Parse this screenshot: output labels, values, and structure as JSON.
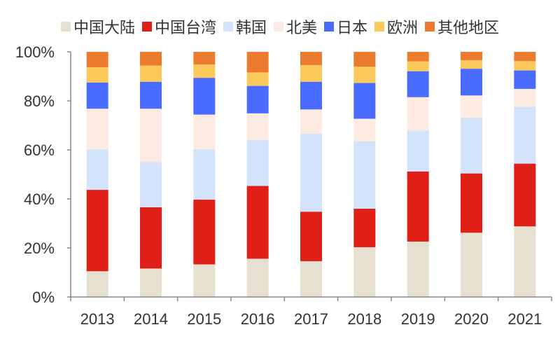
{
  "chart_data": {
    "type": "bar",
    "stacked": true,
    "title": "",
    "xlabel": "",
    "ylabel": "",
    "ylim": [
      0,
      100
    ],
    "yticks": [
      "0%",
      "20%",
      "40%",
      "60%",
      "80%",
      "100%"
    ],
    "legend_position": "top",
    "categories": [
      "2013",
      "2014",
      "2015",
      "2016",
      "2017",
      "2018",
      "2019",
      "2020",
      "2021"
    ],
    "series": [
      {
        "name": "中国大陆",
        "color": "#E6E0D0",
        "values": [
          10.5,
          11.6,
          13.3,
          15.6,
          14.6,
          20.3,
          22.6,
          26.2,
          28.8
        ]
      },
      {
        "name": "中国台湾",
        "color": "#E01F17",
        "values": [
          33.2,
          25.0,
          26.4,
          29.7,
          20.2,
          15.7,
          28.6,
          24.2,
          25.6
        ]
      },
      {
        "name": "韩国",
        "color": "#D3E3FB",
        "values": [
          16.6,
          18.4,
          20.6,
          18.8,
          31.8,
          27.5,
          16.7,
          22.7,
          23.2
        ]
      },
      {
        "name": "北美",
        "color": "#FDEAE0",
        "values": [
          16.5,
          21.8,
          14.1,
          10.8,
          9.9,
          9.2,
          13.6,
          9.1,
          7.3
        ]
      },
      {
        "name": "日本",
        "color": "#4A6BFF",
        "values": [
          10.7,
          11.0,
          15.0,
          11.2,
          11.3,
          14.6,
          10.6,
          10.9,
          7.5
        ]
      },
      {
        "name": "欧洲",
        "color": "#FBC85A",
        "values": [
          6.2,
          6.6,
          5.4,
          5.5,
          6.8,
          6.7,
          4.0,
          3.5,
          3.8
        ]
      },
      {
        "name": "其他地区",
        "color": "#EC7B30",
        "values": [
          6.3,
          5.6,
          5.2,
          8.4,
          5.4,
          6.0,
          3.9,
          3.4,
          3.8
        ]
      }
    ]
  }
}
